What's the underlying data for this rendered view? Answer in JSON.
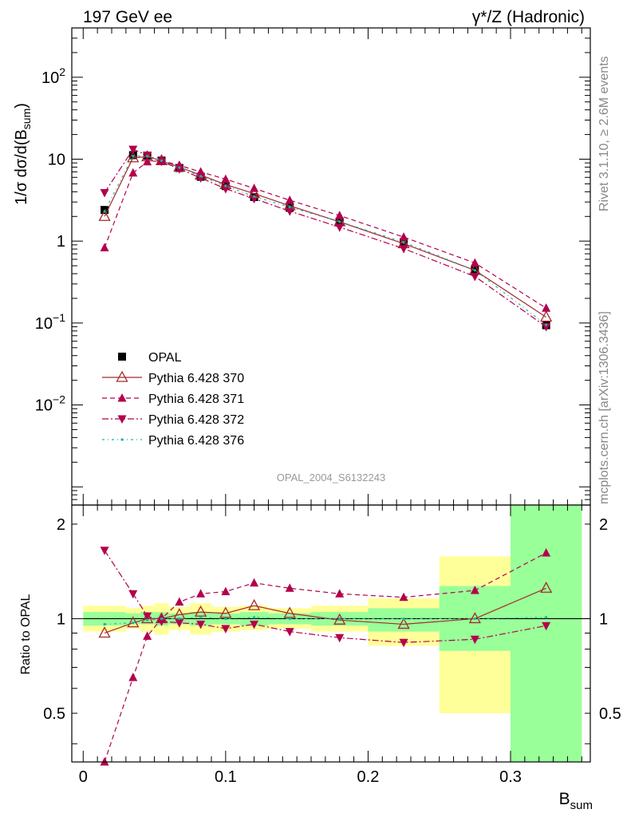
{
  "header": {
    "left": "197 GeV ee",
    "right": "γ*/Z (Hadronic)"
  },
  "side_labels": {
    "rivet": "Rivet 3.1.10, ≥ 2.6M events",
    "source": "mcplots.cern.ch [arXiv:1306.3436]"
  },
  "watermark": "OPAL_2004_S6132243",
  "colors": {
    "data": "#000000",
    "p370": "#a52a2a",
    "p371": "#b3004d",
    "p372": "#b3004d",
    "p376": "#20b2aa",
    "band_yellow": "#ffff99",
    "band_green": "#99ff99"
  },
  "chart_data": [
    {
      "type": "line",
      "panel": "main",
      "ylabel": "1/σ dσ/d(B",
      "ylabel_sub": "sum",
      "ylabel_close": ")",
      "y_scale": "log",
      "xlim": [
        -0.008,
        0.356
      ],
      "ylim": [
        0.0006,
        400
      ],
      "y_ticks": [
        {
          "value": 100,
          "label": "10",
          "sup": "2"
        },
        {
          "value": 10,
          "label": "10",
          "sup": ""
        },
        {
          "value": 1,
          "label": "1",
          "sup": ""
        },
        {
          "value": 0.1,
          "label": "10",
          "sup": "−1"
        },
        {
          "value": 0.01,
          "label": "10",
          "sup": "−2"
        }
      ],
      "x": [
        0.015,
        0.035,
        0.045,
        0.055,
        0.0675,
        0.0825,
        0.1,
        0.12,
        0.145,
        0.18,
        0.225,
        0.275,
        0.325
      ],
      "series": [
        {
          "name": "OPAL",
          "marker": "square",
          "values": [
            2.4,
            11.2,
            11.0,
            9.6,
            7.8,
            6.1,
            4.7,
            3.45,
            2.55,
            1.72,
            0.97,
            0.44,
            0.094
          ]
        },
        {
          "name": "Pythia 6.428 370",
          "marker": "open-triangle-up",
          "line": "solid",
          "values": [
            2.0,
            10.4,
            10.7,
            9.6,
            8.0,
            6.4,
            4.9,
            3.8,
            2.7,
            1.72,
            0.93,
            0.44,
            0.118
          ]
        },
        {
          "name": "Pythia 6.428 371",
          "marker": "triangle-up",
          "line": "dashed",
          "values": [
            0.83,
            6.8,
            9.3,
            9.6,
            8.4,
            7.0,
            5.7,
            4.4,
            3.15,
            2.05,
            1.12,
            0.54,
            0.152
          ]
        },
        {
          "name": "Pythia 6.428 372",
          "marker": "triangle-down",
          "line": "dashdot",
          "values": [
            3.9,
            13.2,
            11.2,
            9.4,
            7.6,
            5.9,
            4.35,
            3.3,
            2.32,
            1.48,
            0.81,
            0.37,
            0.09
          ]
        },
        {
          "name": "Pythia 6.428 376",
          "marker": "dot",
          "line": "dashdot-sparse",
          "values": [
            2.3,
            10.9,
            10.9,
            9.6,
            7.9,
            6.2,
            4.7,
            3.5,
            2.6,
            1.73,
            0.97,
            0.44,
            0.095
          ]
        }
      ]
    },
    {
      "type": "line",
      "panel": "ratio",
      "ylabel": "Ratio to OPAL",
      "xlabel": "B",
      "xlabel_sub": "sum",
      "y_scale": "log",
      "xlim": [
        -0.008,
        0.356
      ],
      "ylim": [
        0.35,
        2.3
      ],
      "x_ticks": [
        {
          "value": 0,
          "label": "0"
        },
        {
          "value": 0.1,
          "label": "0.1"
        },
        {
          "value": 0.2,
          "label": "0.2"
        },
        {
          "value": 0.3,
          "label": "0.3"
        }
      ],
      "y_ticks": [
        {
          "value": 0.5,
          "label": "0.5"
        },
        {
          "value": 1,
          "label": "1"
        },
        {
          "value": 2,
          "label": "2"
        }
      ],
      "x": [
        0.015,
        0.035,
        0.045,
        0.055,
        0.0675,
        0.0825,
        0.1,
        0.12,
        0.145,
        0.18,
        0.225,
        0.275,
        0.325
      ],
      "bands": [
        {
          "x0": 0.0,
          "x1": 0.03,
          "yellow": [
            0.91,
            1.1
          ],
          "green": [
            0.95,
            1.05
          ]
        },
        {
          "x0": 0.03,
          "x1": 0.04,
          "yellow": [
            0.93,
            1.08
          ],
          "green": [
            0.96,
            1.04
          ]
        },
        {
          "x0": 0.04,
          "x1": 0.05,
          "yellow": [
            0.91,
            1.1
          ],
          "green": [
            0.96,
            1.05
          ]
        },
        {
          "x0": 0.05,
          "x1": 0.06,
          "yellow": [
            0.89,
            1.12
          ],
          "green": [
            0.95,
            1.05
          ]
        },
        {
          "x0": 0.06,
          "x1": 0.075,
          "yellow": [
            0.92,
            1.09
          ],
          "green": [
            0.96,
            1.04
          ]
        },
        {
          "x0": 0.075,
          "x1": 0.09,
          "yellow": [
            0.89,
            1.12
          ],
          "green": [
            0.95,
            1.05
          ]
        },
        {
          "x0": 0.09,
          "x1": 0.11,
          "yellow": [
            0.91,
            1.09
          ],
          "green": [
            0.96,
            1.04
          ]
        },
        {
          "x0": 0.11,
          "x1": 0.13,
          "yellow": [
            0.92,
            1.1
          ],
          "green": [
            0.95,
            1.05
          ]
        },
        {
          "x0": 0.13,
          "x1": 0.16,
          "yellow": [
            0.93,
            1.08
          ],
          "green": [
            0.96,
            1.04
          ]
        },
        {
          "x0": 0.16,
          "x1": 0.2,
          "yellow": [
            0.91,
            1.1
          ],
          "green": [
            0.95,
            1.05
          ]
        },
        {
          "x0": 0.2,
          "x1": 0.25,
          "yellow": [
            0.82,
            1.16
          ],
          "green": [
            0.91,
            1.08
          ]
        },
        {
          "x0": 0.25,
          "x1": 0.3,
          "yellow": [
            0.5,
            1.58
          ],
          "green": [
            0.79,
            1.27
          ]
        },
        {
          "x0": 0.3,
          "x1": 0.35,
          "yellow": [
            0.35,
            2.3
          ],
          "green": [
            0.35,
            2.3
          ]
        }
      ],
      "series": [
        {
          "name": "Pythia 6.428 370",
          "marker": "open-triangle-up",
          "line": "solid",
          "values": [
            0.9,
            0.97,
            1.0,
            1.0,
            1.03,
            1.05,
            1.04,
            1.1,
            1.04,
            0.99,
            0.96,
            1.0,
            1.25
          ]
        },
        {
          "name": "Pythia 6.428 371",
          "marker": "triangle-up",
          "line": "dashed",
          "values": [
            0.35,
            0.65,
            0.88,
            1.0,
            1.13,
            1.2,
            1.22,
            1.3,
            1.25,
            1.2,
            1.17,
            1.23,
            1.62
          ]
        },
        {
          "name": "Pythia 6.428 372",
          "marker": "triangle-down",
          "line": "dashdot",
          "values": [
            1.65,
            1.2,
            1.02,
            0.98,
            0.97,
            0.96,
            0.93,
            0.96,
            0.91,
            0.87,
            0.84,
            0.86,
            0.95
          ]
        },
        {
          "name": "Pythia 6.428 376",
          "marker": "dot",
          "line": "dashdot-sparse",
          "values": [
            0.96,
            0.97,
            0.99,
            1.0,
            1.0,
            1.01,
            1.0,
            1.01,
            1.0,
            1.0,
            1.0,
            1.0,
            1.01
          ]
        }
      ]
    }
  ]
}
